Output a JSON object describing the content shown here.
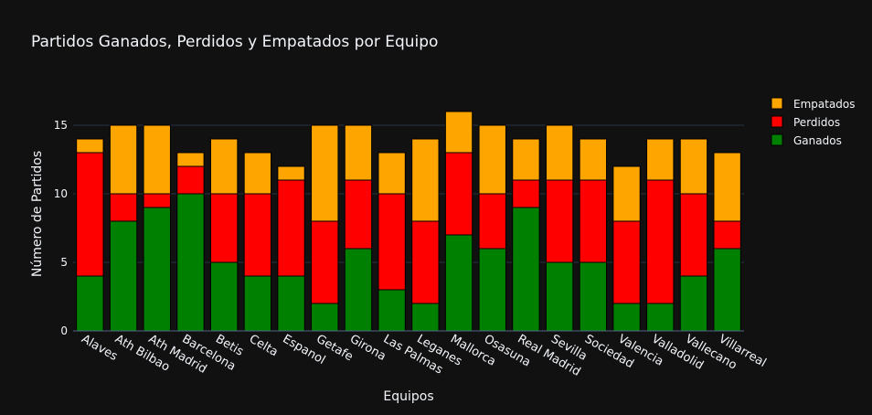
{
  "chart_data": {
    "type": "bar",
    "stacked": true,
    "title": "Partidos Ganados, Perdidos y Empatados por Equipo",
    "xlabel": "Equipos",
    "ylabel": "Número de Partidos",
    "ylim": [
      0,
      17.6
    ],
    "yticks": [
      0,
      5,
      10,
      15
    ],
    "grid": true,
    "legend_position": "top-right",
    "background": "#111111",
    "gridcolor": "#283442",
    "textcolor": "#f2f5fa",
    "categories": [
      "Alaves",
      "Ath Bilbao",
      "Ath Madrid",
      "Barcelona",
      "Betis",
      "Celta",
      "Espanol",
      "Getafe",
      "Girona",
      "Las Palmas",
      "Leganes",
      "Mallorca",
      "Osasuna",
      "Real Madrid",
      "Sevilla",
      "Sociedad",
      "Valencia",
      "Valladolid",
      "Vallecano",
      "Villarreal"
    ],
    "series": [
      {
        "name": "Ganados",
        "color": "#008000",
        "values": [
          4,
          8,
          9,
          10,
          5,
          4,
          4,
          2,
          6,
          3,
          2,
          7,
          6,
          9,
          5,
          5,
          2,
          2,
          4,
          6
        ]
      },
      {
        "name": "Perdidos",
        "color": "#ff0000",
        "values": [
          9,
          2,
          1,
          2,
          5,
          6,
          7,
          6,
          5,
          7,
          6,
          6,
          4,
          2,
          6,
          6,
          6,
          9,
          6,
          2
        ]
      },
      {
        "name": "Empatados",
        "color": "#ffa500",
        "values": [
          1,
          5,
          5,
          1,
          4,
          3,
          1,
          7,
          4,
          3,
          6,
          3,
          5,
          3,
          4,
          3,
          4,
          3,
          4,
          5
        ]
      }
    ]
  }
}
